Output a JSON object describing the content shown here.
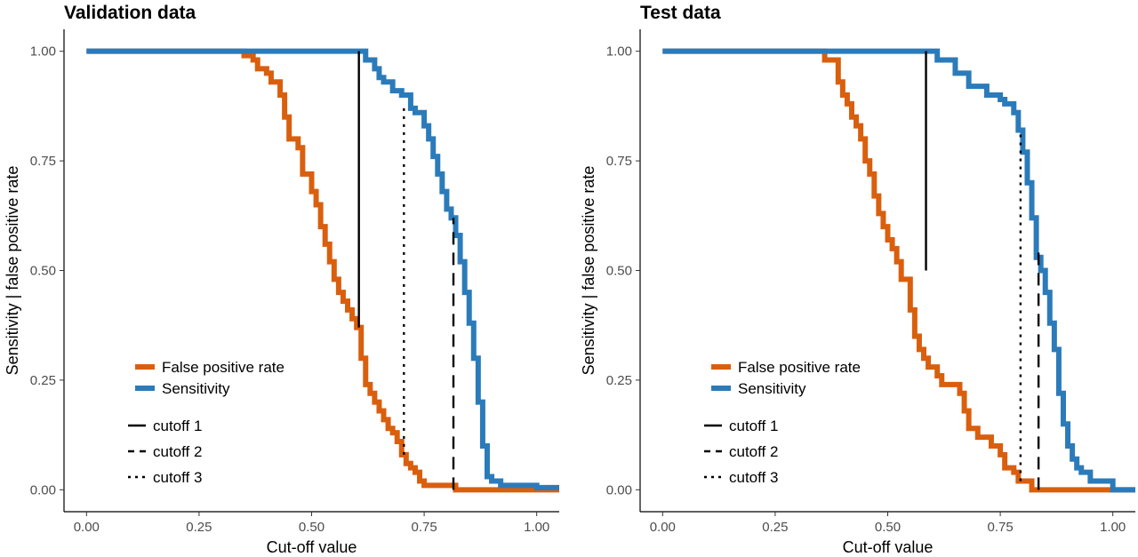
{
  "chart_data": [
    {
      "type": "line",
      "title": "Validation data",
      "xlabel": "Cut-off value",
      "ylabel": "Sensitivity | false positive rate",
      "xlim": [
        -0.05,
        1.05
      ],
      "ylim": [
        -0.05,
        1.05
      ],
      "x_ticks": [
        "0.00",
        "0.25",
        "0.50",
        "0.75",
        "1.00"
      ],
      "y_ticks": [
        "0.00",
        "0.25",
        "0.50",
        "0.75",
        "1.00"
      ],
      "grid": false,
      "legend_position": "bottom-left",
      "series": [
        {
          "name": "False positive rate",
          "color": "#d95f0e",
          "x": [
            0.0,
            0.33,
            0.35,
            0.37,
            0.38,
            0.4,
            0.41,
            0.43,
            0.44,
            0.45,
            0.46,
            0.47,
            0.48,
            0.5,
            0.51,
            0.52,
            0.53,
            0.54,
            0.55,
            0.56,
            0.57,
            0.58,
            0.59,
            0.6,
            0.61,
            0.62,
            0.63,
            0.64,
            0.65,
            0.66,
            0.67,
            0.68,
            0.69,
            0.7,
            0.71,
            0.72,
            0.73,
            0.74,
            0.75,
            0.76,
            0.78,
            0.8,
            0.82,
            0.85,
            0.9,
            0.95,
            1.0,
            1.05
          ],
          "y": [
            1.0,
            1.0,
            0.99,
            0.98,
            0.96,
            0.95,
            0.93,
            0.9,
            0.85,
            0.8,
            0.8,
            0.78,
            0.72,
            0.68,
            0.65,
            0.6,
            0.56,
            0.52,
            0.48,
            0.45,
            0.43,
            0.41,
            0.39,
            0.37,
            0.3,
            0.24,
            0.22,
            0.2,
            0.18,
            0.16,
            0.14,
            0.13,
            0.11,
            0.08,
            0.06,
            0.05,
            0.04,
            0.02,
            0.01,
            0.01,
            0.01,
            0.01,
            0.0,
            0.0,
            0.0,
            0.0,
            0.0,
            0.0
          ]
        },
        {
          "name": "Sensitivity",
          "color": "#2b7bba",
          "x": [
            0.0,
            0.6,
            0.62,
            0.64,
            0.65,
            0.66,
            0.68,
            0.7,
            0.72,
            0.73,
            0.75,
            0.76,
            0.77,
            0.78,
            0.79,
            0.8,
            0.81,
            0.82,
            0.83,
            0.84,
            0.85,
            0.86,
            0.87,
            0.88,
            0.89,
            0.9,
            0.92,
            0.95,
            1.0,
            1.05
          ],
          "y": [
            1.0,
            1.0,
            0.98,
            0.96,
            0.94,
            0.93,
            0.91,
            0.9,
            0.87,
            0.86,
            0.83,
            0.8,
            0.76,
            0.72,
            0.68,
            0.64,
            0.62,
            0.58,
            0.52,
            0.45,
            0.38,
            0.3,
            0.2,
            0.1,
            0.03,
            0.02,
            0.01,
            0.01,
            0.005,
            0.005
          ]
        }
      ],
      "cutoffs": [
        {
          "name": "cutoff 1",
          "x": 0.605,
          "y_from": 0.37,
          "y_to": 1.0,
          "style": "solid"
        },
        {
          "name": "cutoff 2",
          "x": 0.815,
          "y_from": 0.0,
          "y_to": 0.62,
          "style": "dashed"
        },
        {
          "name": "cutoff 3",
          "x": 0.705,
          "y_from": 0.08,
          "y_to": 0.88,
          "style": "dotted"
        }
      ]
    },
    {
      "type": "line",
      "title": "Test data",
      "xlabel": "Cut-off value",
      "ylabel": "Sensitivity | false positive rate",
      "xlim": [
        -0.05,
        1.05
      ],
      "ylim": [
        -0.05,
        1.05
      ],
      "x_ticks": [
        "0.00",
        "0.25",
        "0.50",
        "0.75",
        "1.00"
      ],
      "y_ticks": [
        "0.00",
        "0.25",
        "0.50",
        "0.75",
        "1.00"
      ],
      "grid": false,
      "legend_position": "bottom-left",
      "series": [
        {
          "name": "False positive rate",
          "color": "#d95f0e",
          "x": [
            0.0,
            0.36,
            0.38,
            0.39,
            0.4,
            0.41,
            0.42,
            0.43,
            0.44,
            0.45,
            0.46,
            0.47,
            0.48,
            0.49,
            0.5,
            0.51,
            0.52,
            0.53,
            0.54,
            0.55,
            0.56,
            0.57,
            0.58,
            0.59,
            0.6,
            0.61,
            0.62,
            0.63,
            0.64,
            0.65,
            0.66,
            0.67,
            0.68,
            0.7,
            0.73,
            0.75,
            0.76,
            0.78,
            0.79,
            0.8,
            0.81,
            0.82,
            0.83,
            0.85,
            0.9,
            1.0,
            1.05
          ],
          "y": [
            1.0,
            0.98,
            0.98,
            0.93,
            0.9,
            0.88,
            0.85,
            0.83,
            0.8,
            0.75,
            0.72,
            0.67,
            0.63,
            0.6,
            0.57,
            0.55,
            0.52,
            0.48,
            0.48,
            0.41,
            0.35,
            0.32,
            0.3,
            0.28,
            0.28,
            0.26,
            0.24,
            0.24,
            0.24,
            0.24,
            0.22,
            0.18,
            0.14,
            0.12,
            0.1,
            0.08,
            0.05,
            0.04,
            0.02,
            0.02,
            0.02,
            0.0,
            0.0,
            0.0,
            0.0,
            0.0,
            0.0
          ]
        },
        {
          "name": "Sensitivity",
          "color": "#2b7bba",
          "x": [
            0.0,
            0.6,
            0.61,
            0.63,
            0.65,
            0.68,
            0.7,
            0.72,
            0.75,
            0.76,
            0.78,
            0.79,
            0.8,
            0.81,
            0.82,
            0.83,
            0.84,
            0.85,
            0.86,
            0.87,
            0.88,
            0.89,
            0.9,
            0.91,
            0.92,
            0.93,
            0.95,
            1.0,
            1.05
          ],
          "y": [
            1.0,
            1.0,
            0.98,
            0.98,
            0.95,
            0.92,
            0.92,
            0.9,
            0.89,
            0.88,
            0.86,
            0.82,
            0.77,
            0.7,
            0.62,
            0.53,
            0.5,
            0.45,
            0.38,
            0.32,
            0.22,
            0.15,
            0.1,
            0.07,
            0.05,
            0.04,
            0.02,
            0.0,
            0.0
          ]
        }
      ],
      "cutoffs": [
        {
          "name": "cutoff 1",
          "x": 0.585,
          "y_from": 0.5,
          "y_to": 1.0,
          "style": "solid"
        },
        {
          "name": "cutoff 2",
          "x": 0.835,
          "y_from": 0.0,
          "y_to": 0.55,
          "style": "dashed"
        },
        {
          "name": "cutoff 3",
          "x": 0.795,
          "y_from": 0.02,
          "y_to": 0.82,
          "style": "dotted"
        }
      ]
    }
  ]
}
